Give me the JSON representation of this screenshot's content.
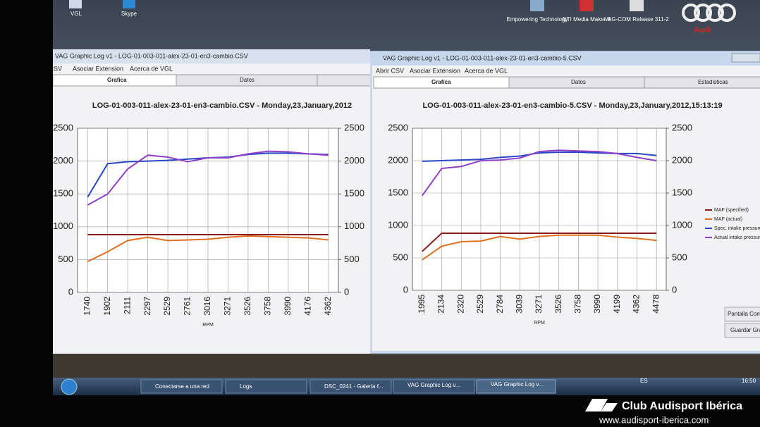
{
  "desktop": {
    "icons": [
      "VGL",
      "Skype",
      "Empowering Technology",
      "NTI Media Maker 8",
      "VAG-COM Release 311-2"
    ],
    "brand": "Audi"
  },
  "windows": [
    {
      "title": "VAG Graphic Log  v1 - LOG-01-003-011-alex-23-01-en3-cambio.CSV",
      "menu": [
        "Abrir CSV",
        "Asociar Extension",
        "Acerca de VGL"
      ],
      "tabs": [
        "Grafica",
        "Datos"
      ]
    },
    {
      "title": "VAG Graphic Log  v1 - LOG-01-003-011-alex-23-01-en3-cambio-5.CSV",
      "menu": [
        "Abrir CSV",
        "Asociar Extension",
        "Acerca de VGL"
      ],
      "tabs": [
        "Grafica",
        "Datos",
        "Estadisticas"
      ],
      "buttons": [
        "Pantalla Completa",
        "Guardar Grafica"
      ]
    }
  ],
  "chart_data": [
    {
      "type": "line",
      "title": "LOG-01-003-011-alex-23-01-en3-cambio.CSV - Monday,23,January,2012",
      "x_label": "RPM",
      "categories": [
        "1740",
        "1902",
        "2111",
        "2297",
        "2529",
        "2761",
        "3016",
        "3271",
        "3526",
        "3758",
        "3990",
        "4176",
        "4362"
      ],
      "series": [
        {
          "color": "#8b1a1a",
          "values": [
            880,
            880,
            880,
            880,
            880,
            880,
            880,
            880,
            880,
            880,
            880,
            880,
            880
          ]
        },
        {
          "color": "#e07020",
          "values": [
            470,
            620,
            790,
            840,
            790,
            800,
            810,
            840,
            860,
            850,
            840,
            830,
            800
          ]
        },
        {
          "color": "#2848c8",
          "values": [
            1450,
            1960,
            1990,
            2000,
            2010,
            2030,
            2050,
            2060,
            2100,
            2120,
            2120,
            2110,
            2100
          ]
        },
        {
          "color": "#9040c8",
          "values": [
            1330,
            1500,
            1880,
            2090,
            2060,
            1990,
            2050,
            2050,
            2110,
            2150,
            2140,
            2110,
            2090
          ]
        }
      ],
      "ylim": [
        0,
        2500
      ],
      "yticks": [
        0,
        500,
        1000,
        1500,
        2000,
        2500
      ],
      "y2lim": [
        0,
        2500
      ],
      "y2ticks": [
        0,
        500,
        1000,
        1500,
        2000,
        2500
      ],
      "grid": true
    },
    {
      "type": "line",
      "title": "LOG-01-003-011-alex-23-01-en3-cambio-5.CSV - Monday,23,January,2012,15:13:19",
      "x_label": "RPM",
      "categories": [
        "1995",
        "2134",
        "2320",
        "2529",
        "2784",
        "3039",
        "3271",
        "3526",
        "3758",
        "3990",
        "4199",
        "4362",
        "4478"
      ],
      "series": [
        {
          "name": "MAF (specified)",
          "color": "#8b1a1a",
          "values": [
            600,
            880,
            880,
            880,
            880,
            880,
            880,
            880,
            880,
            880,
            880,
            880,
            880
          ]
        },
        {
          "name": "MAF (actual)",
          "color": "#e07020",
          "values": [
            470,
            680,
            750,
            760,
            830,
            790,
            830,
            850,
            850,
            850,
            820,
            800,
            770
          ]
        },
        {
          "name": "Spec. intake pressure",
          "color": "#2848c8",
          "values": [
            1990,
            2000,
            2010,
            2020,
            2050,
            2070,
            2120,
            2130,
            2130,
            2120,
            2110,
            2110,
            2080
          ]
        },
        {
          "name": "Actual intake pressure",
          "color": "#9040c8",
          "values": [
            1460,
            1880,
            1910,
            2000,
            2010,
            2040,
            2140,
            2160,
            2150,
            2140,
            2110,
            2050,
            2000
          ]
        }
      ],
      "ylim": [
        0,
        2500
      ],
      "yticks": [
        0,
        500,
        1000,
        1500,
        2000,
        2500
      ],
      "y2lim": [
        0,
        2500
      ],
      "y2ticks": [
        0,
        500,
        1000,
        1500,
        2000,
        2500
      ],
      "grid": true,
      "legend": "right"
    }
  ],
  "taskbar": {
    "items": [
      "Conectarse a una red",
      "Logs",
      "DSC_0241 - Galería f...",
      "VAG Graphic Log  v...",
      "VAG Graphic Log  v..."
    ],
    "lang": "ES",
    "clock": "16:50"
  },
  "watermark": {
    "name": "Club Audisport Ibérica",
    "url": "www.audisport-iberica.com"
  }
}
